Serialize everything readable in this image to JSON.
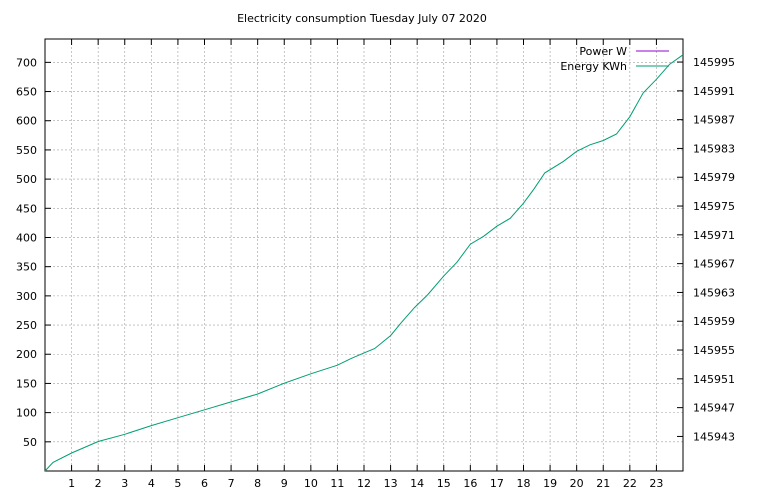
{
  "chart_data": {
    "type": "line",
    "title": "Electricity consumption Tuesday July 07 2020",
    "xlabel": "",
    "ylabel": "",
    "xlim": [
      0,
      24
    ],
    "ylim": [
      0,
      740
    ],
    "y2lim": [
      145938.2,
      145998.2
    ],
    "x_ticks": [
      "1",
      "2",
      "3",
      "4",
      "5",
      "6",
      "7",
      "8",
      "9",
      "10",
      "11",
      "12",
      "13",
      "14",
      "15",
      "16",
      "17",
      "18",
      "19",
      "20",
      "21",
      "22",
      "23"
    ],
    "y_ticks": [
      "50",
      "100",
      "150",
      "200",
      "250",
      "300",
      "350",
      "400",
      "450",
      "500",
      "550",
      "600",
      "650",
      "700"
    ],
    "y2_ticks": [
      "145943",
      "145947",
      "145951",
      "145955",
      "145959",
      "145963",
      "145967",
      "145971",
      "145975",
      "145979",
      "145983",
      "145987",
      "145991",
      "145995"
    ],
    "grid": true,
    "legend_position": "top-right",
    "series": [
      {
        "name": "Power W",
        "color": "#9400d3",
        "axis": "y1",
        "x": [],
        "values": []
      },
      {
        "name": "Energy KWh",
        "color": "#009e73",
        "axis": "y2",
        "x": [
          0,
          0.3,
          1,
          2,
          3,
          4,
          5,
          6,
          7,
          8,
          9,
          10,
          11,
          11.5,
          12,
          12.4,
          13,
          13.4,
          13.9,
          14.4,
          15,
          15.5,
          16,
          16.5,
          17,
          17.5,
          18,
          18.4,
          18.8,
          19.5,
          20,
          20.5,
          21,
          21.5,
          22,
          22.5,
          23,
          23.5,
          24
        ],
        "values": [
          145938.2,
          145939.4,
          145940.7,
          145942.3,
          145943.3,
          145944.5,
          145945.6,
          145946.7,
          145947.8,
          145948.9,
          145950.4,
          145951.7,
          145952.9,
          145953.8,
          145954.6,
          145955.2,
          145957.0,
          145958.8,
          145960.9,
          145962.7,
          145965.3,
          145967.2,
          145969.7,
          145970.8,
          145972.2,
          145973.3,
          145975.4,
          145977.4,
          145979.6,
          145981.2,
          145982.6,
          145983.5,
          145984.1,
          145985.0,
          145987.4,
          145990.7,
          145992.6,
          145994.7,
          145996.0
        ]
      }
    ]
  }
}
